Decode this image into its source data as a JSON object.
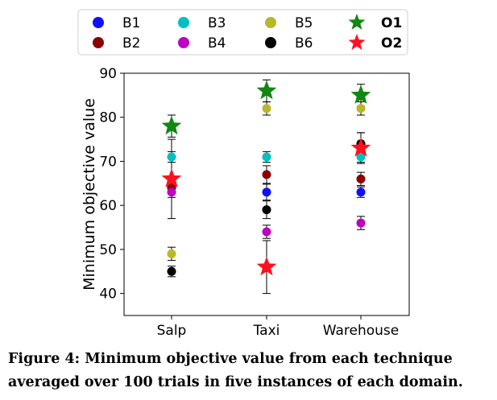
{
  "chart_data": {
    "type": "scatter",
    "ylabel": "Minimum objective value",
    "categories": [
      "Salp",
      "Taxi",
      "Warehouse"
    ],
    "ylim": [
      35,
      90
    ],
    "yticks": [
      40,
      50,
      60,
      70,
      80,
      90
    ],
    "legend_placement": "top",
    "series": [
      {
        "name": "B1",
        "color": "#1010ff",
        "marker": "circle",
        "values": [
          64,
          63,
          63
        ],
        "err": [
          1.2,
          1.8,
          1.2
        ]
      },
      {
        "name": "B2",
        "color": "#8b0000",
        "marker": "circle",
        "values": [
          64,
          67,
          66
        ],
        "err": [
          1.2,
          2.0,
          1.5
        ]
      },
      {
        "name": "B3",
        "color": "#00c0c0",
        "marker": "circle",
        "values": [
          71,
          71,
          71
        ],
        "err": [
          1.2,
          1.2,
          1.2
        ]
      },
      {
        "name": "B4",
        "color": "#c000c0",
        "marker": "circle",
        "values": [
          63,
          54,
          56
        ],
        "err": [
          1.2,
          1.5,
          1.5
        ]
      },
      {
        "name": "B5",
        "color": "#b8b82a",
        "marker": "circle",
        "values": [
          49,
          82,
          82
        ],
        "err": [
          1.5,
          1.5,
          1.5
        ]
      },
      {
        "name": "B6",
        "color": "#000000",
        "marker": "circle",
        "values": [
          45,
          59,
          74
        ],
        "err": [
          1.2,
          2.0,
          2.5
        ]
      },
      {
        "name": "O1",
        "color": "#118811",
        "marker": "star",
        "values": [
          78,
          86,
          85
        ],
        "err": [
          2.5,
          2.5,
          2.5
        ]
      },
      {
        "name": "O2",
        "color": "#ff1020",
        "marker": "star",
        "values": [
          66,
          46,
          73
        ],
        "err": [
          9.0,
          6.0,
          3.5
        ]
      }
    ]
  },
  "caption": "Figure 4: Minimum objective value from each technique averaged over 100 trials in five instances of each domain."
}
